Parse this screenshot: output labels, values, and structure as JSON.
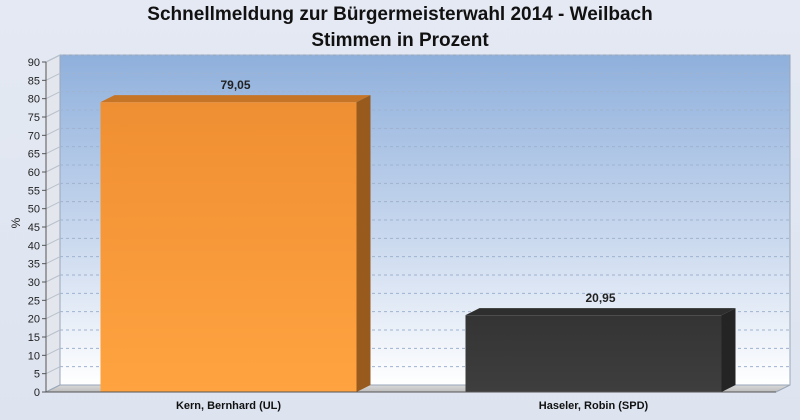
{
  "chart_data": {
    "type": "bar",
    "title_line1": "Schnellmeldung zur Bürgermeisterwahl 2014 - Weilbach",
    "title_line2": "Stimmen in Prozent",
    "categories": [
      "Kern, Bernhard (UL)",
      "Haseler, Robin (SPD)"
    ],
    "values": [
      79.05,
      20.95
    ],
    "value_labels": [
      "79,05",
      "20,95"
    ],
    "bar_colors": [
      "#f7922f",
      "#3a3a3a"
    ],
    "ylabel": "%",
    "ylim": [
      0,
      90
    ],
    "ytick_step": 5,
    "grid": true,
    "legend": "none",
    "style": "3d"
  }
}
